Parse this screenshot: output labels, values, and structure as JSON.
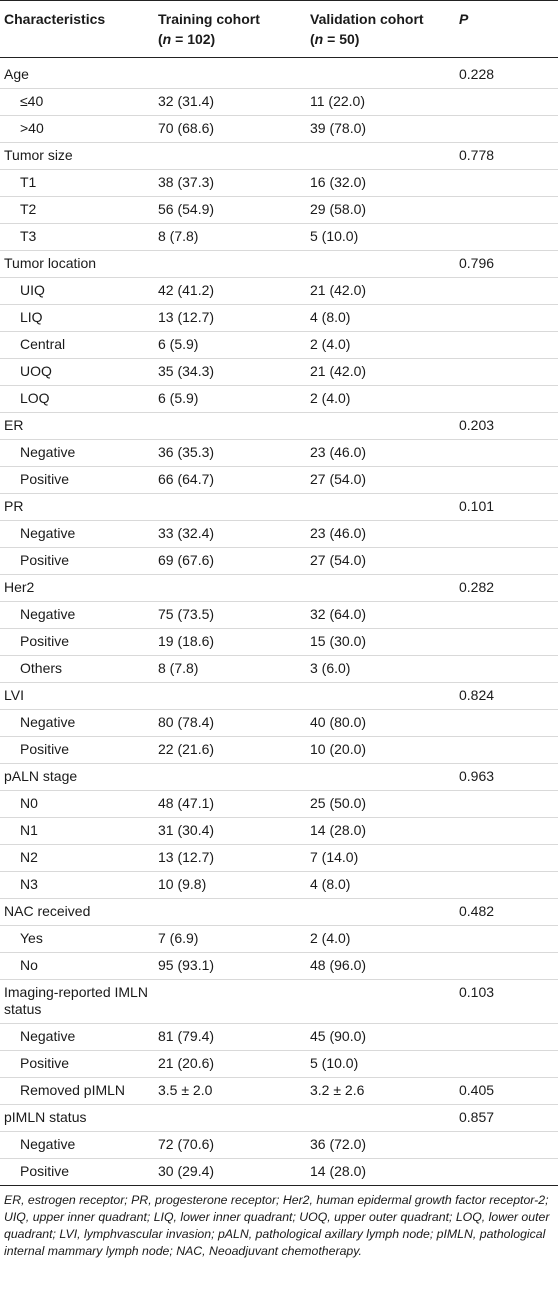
{
  "table": {
    "headers": {
      "characteristics": "Characteristics",
      "training_line1": "Training cohort",
      "training_line2_pre": "(",
      "training_line2_n": "n",
      "training_line2_post": " = 102)",
      "validation_line1": "Validation cohort",
      "validation_line2_pre": "(",
      "validation_line2_n": "n",
      "validation_line2_post": " = 50)",
      "p": "P"
    },
    "rows": [
      {
        "label": "Age",
        "training": "",
        "validation": "",
        "p": "0.228",
        "sub": false
      },
      {
        "label": "≤40",
        "training": "32 (31.4)",
        "validation": "11 (22.0)",
        "p": "",
        "sub": true
      },
      {
        "label": ">40",
        "training": "70 (68.6)",
        "validation": "39 (78.0)",
        "p": "",
        "sub": true
      },
      {
        "label": "Tumor size",
        "training": "",
        "validation": "",
        "p": "0.778",
        "sub": false
      },
      {
        "label": "T1",
        "training": "38 (37.3)",
        "validation": "16 (32.0)",
        "p": "",
        "sub": true
      },
      {
        "label": "T2",
        "training": "56 (54.9)",
        "validation": "29 (58.0)",
        "p": "",
        "sub": true
      },
      {
        "label": "T3",
        "training": "8 (7.8)",
        "validation": "5 (10.0)",
        "p": "",
        "sub": true
      },
      {
        "label": "Tumor location",
        "training": "",
        "validation": "",
        "p": "0.796",
        "sub": false
      },
      {
        "label": "UIQ",
        "training": "42 (41.2)",
        "validation": "21 (42.0)",
        "p": "",
        "sub": true
      },
      {
        "label": "LIQ",
        "training": "13 (12.7)",
        "validation": "4 (8.0)",
        "p": "",
        "sub": true
      },
      {
        "label": "Central",
        "training": "6 (5.9)",
        "validation": "2 (4.0)",
        "p": "",
        "sub": true
      },
      {
        "label": "UOQ",
        "training": "35 (34.3)",
        "validation": "21 (42.0)",
        "p": "",
        "sub": true
      },
      {
        "label": "LOQ",
        "training": "6 (5.9)",
        "validation": "2 (4.0)",
        "p": "",
        "sub": true
      },
      {
        "label": "ER",
        "training": "",
        "validation": "",
        "p": "0.203",
        "sub": false
      },
      {
        "label": "Negative",
        "training": "36 (35.3)",
        "validation": "23 (46.0)",
        "p": "",
        "sub": true
      },
      {
        "label": "Positive",
        "training": "66 (64.7)",
        "validation": "27 (54.0)",
        "p": "",
        "sub": true
      },
      {
        "label": "PR",
        "training": "",
        "validation": "",
        "p": "0.101",
        "sub": false
      },
      {
        "label": "Negative",
        "training": "33 (32.4)",
        "validation": "23 (46.0)",
        "p": "",
        "sub": true
      },
      {
        "label": "Positive",
        "training": "69 (67.6)",
        "validation": "27 (54.0)",
        "p": "",
        "sub": true
      },
      {
        "label": "Her2",
        "training": "",
        "validation": "",
        "p": "0.282",
        "sub": false
      },
      {
        "label": "Negative",
        "training": "75 (73.5)",
        "validation": "32 (64.0)",
        "p": "",
        "sub": true
      },
      {
        "label": "Positive",
        "training": "19 (18.6)",
        "validation": "15 (30.0)",
        "p": "",
        "sub": true
      },
      {
        "label": "Others",
        "training": "8 (7.8)",
        "validation": "3 (6.0)",
        "p": "",
        "sub": true
      },
      {
        "label": "LVI",
        "training": "",
        "validation": "",
        "p": "0.824",
        "sub": false
      },
      {
        "label": "Negative",
        "training": "80 (78.4)",
        "validation": "40 (80.0)",
        "p": "",
        "sub": true
      },
      {
        "label": "Positive",
        "training": "22 (21.6)",
        "validation": "10 (20.0)",
        "p": "",
        "sub": true
      },
      {
        "label": "pALN stage",
        "training": "",
        "validation": "",
        "p": "0.963",
        "sub": false
      },
      {
        "label": "N0",
        "training": "48 (47.1)",
        "validation": "25 (50.0)",
        "p": "",
        "sub": true
      },
      {
        "label": "N1",
        "training": "31 (30.4)",
        "validation": "14 (28.0)",
        "p": "",
        "sub": true
      },
      {
        "label": "N2",
        "training": "13 (12.7)",
        "validation": "7 (14.0)",
        "p": "",
        "sub": true
      },
      {
        "label": "N3",
        "training": "10 (9.8)",
        "validation": "4 (8.0)",
        "p": "",
        "sub": true
      },
      {
        "label": "NAC received",
        "training": "",
        "validation": "",
        "p": "0.482",
        "sub": false
      },
      {
        "label": "Yes",
        "training": "7 (6.9)",
        "validation": "2 (4.0)",
        "p": "",
        "sub": true
      },
      {
        "label": "No",
        "training": "95 (93.1)",
        "validation": "48 (96.0)",
        "p": "",
        "sub": true
      },
      {
        "label": "Imaging-reported IMLN status",
        "training": "",
        "validation": "",
        "p": "0.103",
        "sub": false,
        "wrap": true
      },
      {
        "label": "Negative",
        "training": "81 (79.4)",
        "validation": "45 (90.0)",
        "p": "",
        "sub": true
      },
      {
        "label": "Positive",
        "training": "21 (20.6)",
        "validation": "5 (10.0)",
        "p": "",
        "sub": true
      },
      {
        "label": "Removed pIMLN",
        "training": "3.5 ± 2.0",
        "validation": "3.2 ± 2.6",
        "p": "0.405",
        "sub": true
      },
      {
        "label": "pIMLN status",
        "training": "",
        "validation": "",
        "p": "0.857",
        "sub": false
      },
      {
        "label": "Negative",
        "training": "72 (70.6)",
        "validation": "36 (72.0)",
        "p": "",
        "sub": true
      },
      {
        "label": "Positive",
        "training": "30 (29.4)",
        "validation": "14 (28.0)",
        "p": "",
        "sub": true
      }
    ],
    "footnote": "ER, estrogen receptor; PR, progesterone receptor; Her2, human epidermal growth factor receptor-2; UIQ, upper inner quadrant; LIQ, lower inner quadrant; UOQ, upper outer quadrant; LOQ, lower outer quadrant; LVI, lymphvascular invasion; pALN, pathological axillary lymph node; pIMLN, pathological internal mammary lymph node; NAC, Neoadjuvant chemotherapy."
  }
}
